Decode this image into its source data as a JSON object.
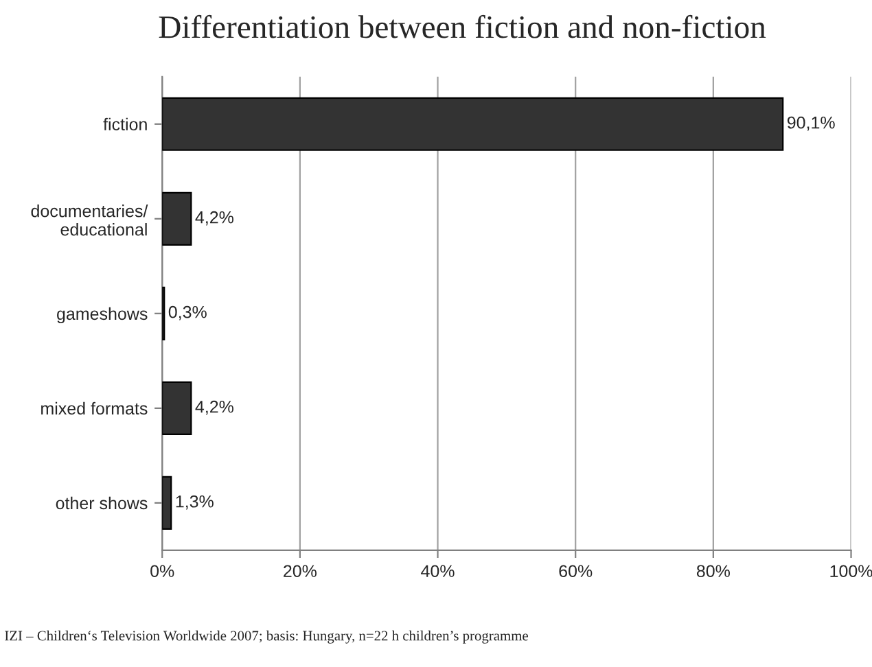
{
  "chart_data": {
    "type": "bar",
    "orientation": "horizontal",
    "title": "Differentiation between fiction and non-fiction",
    "categories": [
      "fiction",
      "documentaries/\neducational",
      "gameshows",
      "mixed formats",
      "other shows"
    ],
    "values": [
      90.1,
      4.2,
      0.3,
      4.2,
      1.3
    ],
    "value_labels": [
      "90,1%",
      "4,2%",
      "0,3%",
      "4,2%",
      "1,3%"
    ],
    "color": "#333333",
    "xlim": [
      0,
      100
    ],
    "xticks": [
      {
        "value": 0,
        "label": "0%"
      },
      {
        "value": 20,
        "label": "20%"
      },
      {
        "value": 40,
        "label": "40%"
      },
      {
        "value": 60,
        "label": "60%"
      },
      {
        "value": 80,
        "label": "80%"
      },
      {
        "value": 100,
        "label": "100%"
      }
    ],
    "grid": "x",
    "annotations": [
      "IZI – Children‘s Television Worldwide 2007; basis: Hungary, n=22 h children’s programme"
    ]
  }
}
